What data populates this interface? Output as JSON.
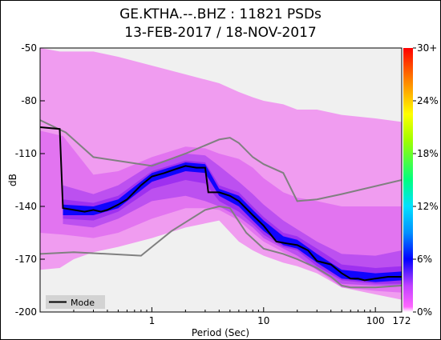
{
  "header": {
    "title_line1": "GE.KTHA.--.BHZ : 11821 PSDs",
    "title_line2": "13-FEB-2017 / 18-NOV-2017"
  },
  "colors": {
    "mode": "#000000",
    "noise_models": "#808080",
    "plot_bg": "#f0f0f0",
    "pdf_low": "#f080f0",
    "pdf_mid": "#9a2cf0",
    "pdf_high": "#0000ff"
  },
  "chart_data": {
    "type": "heatmap",
    "title": "GE.KTHA.--.BHZ : 11821 PSDs",
    "subtitle": "13-FEB-2017 / 18-NOV-2017",
    "xlabel": "Period (Sec)",
    "ylabel": "dB",
    "x_scale": "log",
    "xlim": [
      0.1,
      172
    ],
    "ylim": [
      -200,
      -50
    ],
    "x_ticks": [
      {
        "value": 1,
        "label": "1"
      },
      {
        "value": 10,
        "label": "10"
      },
      {
        "value": 100,
        "label": "100"
      },
      {
        "value": 172,
        "label": "172"
      }
    ],
    "y_ticks": [
      {
        "value": -50,
        "label": "-50"
      },
      {
        "value": -80,
        "label": "-80"
      },
      {
        "value": -110,
        "label": "-110"
      },
      {
        "value": -140,
        "label": "-140"
      },
      {
        "value": -170,
        "label": "-170"
      },
      {
        "value": -200,
        "label": "-200"
      }
    ],
    "colorbar": {
      "ticks": [
        {
          "value": 0,
          "label": "0%"
        },
        {
          "value": 6,
          "label": "6%"
        },
        {
          "value": 12,
          "label": "12%"
        },
        {
          "value": 18,
          "label": "18%"
        },
        {
          "value": 24,
          "label": "24%"
        },
        {
          "value": 30,
          "label": "30+"
        }
      ],
      "range": [
        0,
        30
      ]
    },
    "legend": {
      "label": "Mode",
      "placement": "bottom-left"
    },
    "mode": {
      "name": "Mode",
      "points": [
        [
          0.1,
          -95
        ],
        [
          0.15,
          -96
        ],
        [
          0.16,
          -141
        ],
        [
          0.2,
          -142
        ],
        [
          0.25,
          -143
        ],
        [
          0.3,
          -142
        ],
        [
          0.35,
          -143
        ],
        [
          0.4,
          -142
        ],
        [
          0.5,
          -139
        ],
        [
          0.6,
          -136
        ],
        [
          0.8,
          -128
        ],
        [
          1,
          -123
        ],
        [
          1.3,
          -121
        ],
        [
          1.6,
          -119
        ],
        [
          2,
          -117
        ],
        [
          2.5,
          -118
        ],
        [
          3,
          -118
        ],
        [
          3.2,
          -132
        ],
        [
          4,
          -132
        ],
        [
          5,
          -134
        ],
        [
          6,
          -137
        ],
        [
          8,
          -145
        ],
        [
          10,
          -151
        ],
        [
          13,
          -160
        ],
        [
          16,
          -161
        ],
        [
          20,
          -162
        ],
        [
          25,
          -165
        ],
        [
          30,
          -171
        ],
        [
          40,
          -173
        ],
        [
          50,
          -178
        ],
        [
          60,
          -181
        ],
        [
          70,
          -181
        ],
        [
          80,
          -182
        ],
        [
          100,
          -181
        ],
        [
          130,
          -180
        ],
        [
          172,
          -180
        ]
      ]
    },
    "nhnm": {
      "points": [
        [
          0.1,
          -91
        ],
        [
          0.17,
          -98
        ],
        [
          0.3,
          -112
        ],
        [
          1,
          -117
        ],
        [
          2,
          -110
        ],
        [
          4,
          -102
        ],
        [
          5,
          -101
        ],
        [
          6,
          -104
        ],
        [
          8,
          -112
        ],
        [
          10,
          -116
        ],
        [
          15,
          -121
        ],
        [
          20,
          -137
        ],
        [
          30,
          -136
        ],
        [
          50,
          -133
        ],
        [
          172,
          -125
        ]
      ]
    },
    "nlnm": {
      "points": [
        [
          0.1,
          -167
        ],
        [
          0.2,
          -166
        ],
        [
          0.8,
          -168
        ],
        [
          1,
          -163
        ],
        [
          1.5,
          -154
        ],
        [
          2,
          -149
        ],
        [
          3,
          -142
        ],
        [
          4,
          -140
        ],
        [
          5,
          -141
        ],
        [
          7,
          -155
        ],
        [
          10,
          -164
        ],
        [
          15,
          -167
        ],
        [
          20,
          -170
        ],
        [
          30,
          -175
        ],
        [
          40,
          -180
        ],
        [
          50,
          -185
        ],
        [
          60,
          -186
        ],
        [
          100,
          -186
        ],
        [
          172,
          -185
        ]
      ]
    },
    "pdf_bands": [
      {
        "level": 1,
        "points": [
          [
            0.1,
            -50,
            -176
          ],
          [
            0.15,
            -52,
            -175
          ],
          [
            0.2,
            -52,
            -170
          ],
          [
            0.3,
            -52,
            -166
          ],
          [
            0.5,
            -55,
            -163
          ],
          [
            1,
            -60,
            -158
          ],
          [
            2,
            -65,
            -152
          ],
          [
            4,
            -70,
            -148
          ],
          [
            6,
            -75,
            -160
          ],
          [
            8,
            -78,
            -165
          ],
          [
            10,
            -80,
            -168
          ],
          [
            15,
            -82,
            -172
          ],
          [
            20,
            -85,
            -174
          ],
          [
            30,
            -85,
            -178
          ],
          [
            50,
            -88,
            -186
          ],
          [
            100,
            -90,
            -190
          ],
          [
            172,
            -92,
            -193
          ]
        ]
      },
      {
        "level": 2,
        "points": [
          [
            0.1,
            -97,
            -155
          ],
          [
            0.16,
            -100,
            -156
          ],
          [
            0.3,
            -122,
            -158
          ],
          [
            0.5,
            -120,
            -155
          ],
          [
            1,
            -112,
            -147
          ],
          [
            2,
            -106,
            -141
          ],
          [
            3,
            -107,
            -141
          ],
          [
            4,
            -110,
            -142
          ],
          [
            6,
            -113,
            -148
          ],
          [
            8,
            -118,
            -155
          ],
          [
            10,
            -124,
            -160
          ],
          [
            15,
            -132,
            -166
          ],
          [
            20,
            -135,
            -170
          ],
          [
            30,
            -137,
            -176
          ],
          [
            50,
            -140,
            -186
          ],
          [
            100,
            -140,
            -188
          ],
          [
            172,
            -140,
            -189
          ]
        ]
      },
      {
        "level": 3,
        "points": [
          [
            0.16,
            -128,
            -150
          ],
          [
            0.3,
            -133,
            -152
          ],
          [
            0.5,
            -128,
            -147
          ],
          [
            1,
            -116,
            -137
          ],
          [
            2,
            -110,
            -134
          ],
          [
            3,
            -111,
            -137
          ],
          [
            4,
            -117,
            -140
          ],
          [
            6,
            -126,
            -146
          ],
          [
            8,
            -133,
            -152
          ],
          [
            10,
            -139,
            -158
          ],
          [
            15,
            -148,
            -164
          ],
          [
            20,
            -153,
            -168
          ],
          [
            30,
            -160,
            -176
          ],
          [
            50,
            -167,
            -184
          ],
          [
            100,
            -168,
            -185
          ],
          [
            172,
            -165,
            -185
          ]
        ]
      },
      {
        "level": 4,
        "points": [
          [
            0.16,
            -136,
            -147
          ],
          [
            0.3,
            -138,
            -148
          ],
          [
            0.5,
            -134,
            -143
          ],
          [
            1,
            -120,
            -130
          ],
          [
            2,
            -114,
            -125
          ],
          [
            3,
            -115,
            -127
          ],
          [
            4,
            -128,
            -137
          ],
          [
            6,
            -132,
            -143
          ],
          [
            8,
            -140,
            -150
          ],
          [
            10,
            -146,
            -156
          ],
          [
            15,
            -155,
            -163
          ],
          [
            20,
            -157,
            -165
          ],
          [
            30,
            -164,
            -174
          ],
          [
            50,
            -173,
            -182
          ],
          [
            100,
            -175,
            -184
          ],
          [
            172,
            -174,
            -184
          ]
        ]
      },
      {
        "level": 5,
        "points": [
          [
            0.16,
            -139,
            -145
          ],
          [
            0.3,
            -140,
            -145
          ],
          [
            0.5,
            -136,
            -141
          ],
          [
            1,
            -121,
            -126
          ],
          [
            2,
            -115,
            -120
          ],
          [
            3,
            -116,
            -121
          ],
          [
            4,
            -130,
            -134
          ],
          [
            6,
            -134,
            -140
          ],
          [
            8,
            -142,
            -148
          ],
          [
            10,
            -148,
            -154
          ],
          [
            15,
            -157,
            -162
          ],
          [
            20,
            -159,
            -164
          ],
          [
            30,
            -167,
            -172
          ],
          [
            50,
            -176,
            -181
          ],
          [
            100,
            -178,
            -183
          ],
          [
            172,
            -177,
            -182
          ]
        ]
      }
    ]
  }
}
